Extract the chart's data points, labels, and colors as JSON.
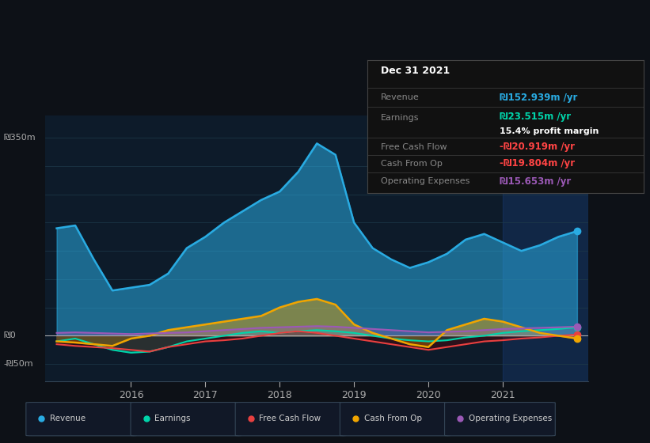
{
  "bg_color": "#0d1117",
  "chart_bg": "#0d1b2a",
  "title_box": {
    "date": "Dec 31 2021",
    "revenue_val": "₪152.939m /yr",
    "earnings_val": "₪23.515m /yr",
    "profit_margin": "15.4% profit margin",
    "fcf_val": "-₪20.919m /yr",
    "cashop_val": "-₪19.804m /yr",
    "opex_val": "₪15.653m /yr"
  },
  "ylabel_top": "₪350m",
  "ylabel_zero": "₪0",
  "ylabel_neg": "-₪50m",
  "ylim": [
    -80,
    390
  ],
  "colors": {
    "revenue": "#29abe2",
    "earnings": "#00d4aa",
    "fcf": "#e84040",
    "cashop": "#f0a500",
    "opex": "#9b59b6"
  },
  "x": [
    2015.0,
    2015.25,
    2015.5,
    2015.75,
    2016.0,
    2016.25,
    2016.5,
    2016.75,
    2017.0,
    2017.25,
    2017.5,
    2017.75,
    2018.0,
    2018.25,
    2018.5,
    2018.75,
    2019.0,
    2019.25,
    2019.5,
    2019.75,
    2020.0,
    2020.25,
    2020.5,
    2020.75,
    2021.0,
    2021.25,
    2021.5,
    2021.75,
    2022.0
  ],
  "revenue": [
    190,
    195,
    135,
    80,
    85,
    90,
    110,
    155,
    175,
    200,
    220,
    240,
    255,
    290,
    340,
    320,
    200,
    155,
    135,
    120,
    130,
    145,
    170,
    180,
    165,
    150,
    160,
    175,
    185
  ],
  "earnings": [
    -10,
    -5,
    -15,
    -25,
    -30,
    -28,
    -20,
    -10,
    -5,
    0,
    5,
    8,
    5,
    8,
    10,
    8,
    5,
    0,
    -5,
    -8,
    -10,
    -8,
    -3,
    0,
    5,
    8,
    10,
    12,
    15
  ],
  "fcf": [
    -15,
    -18,
    -20,
    -22,
    -25,
    -28,
    -20,
    -15,
    -10,
    -8,
    -5,
    0,
    5,
    8,
    5,
    0,
    -5,
    -10,
    -15,
    -20,
    -25,
    -20,
    -15,
    -10,
    -8,
    -5,
    -3,
    0,
    2
  ],
  "cashop": [
    -10,
    -12,
    -15,
    -18,
    -5,
    0,
    10,
    15,
    20,
    25,
    30,
    35,
    50,
    60,
    65,
    55,
    20,
    5,
    -5,
    -15,
    -20,
    10,
    20,
    30,
    25,
    15,
    5,
    0,
    -5
  ],
  "opex": [
    5,
    6,
    5,
    4,
    3,
    4,
    5,
    6,
    8,
    10,
    12,
    14,
    15,
    16,
    17,
    16,
    14,
    12,
    10,
    8,
    6,
    7,
    8,
    10,
    12,
    13,
    14,
    15,
    16
  ]
}
